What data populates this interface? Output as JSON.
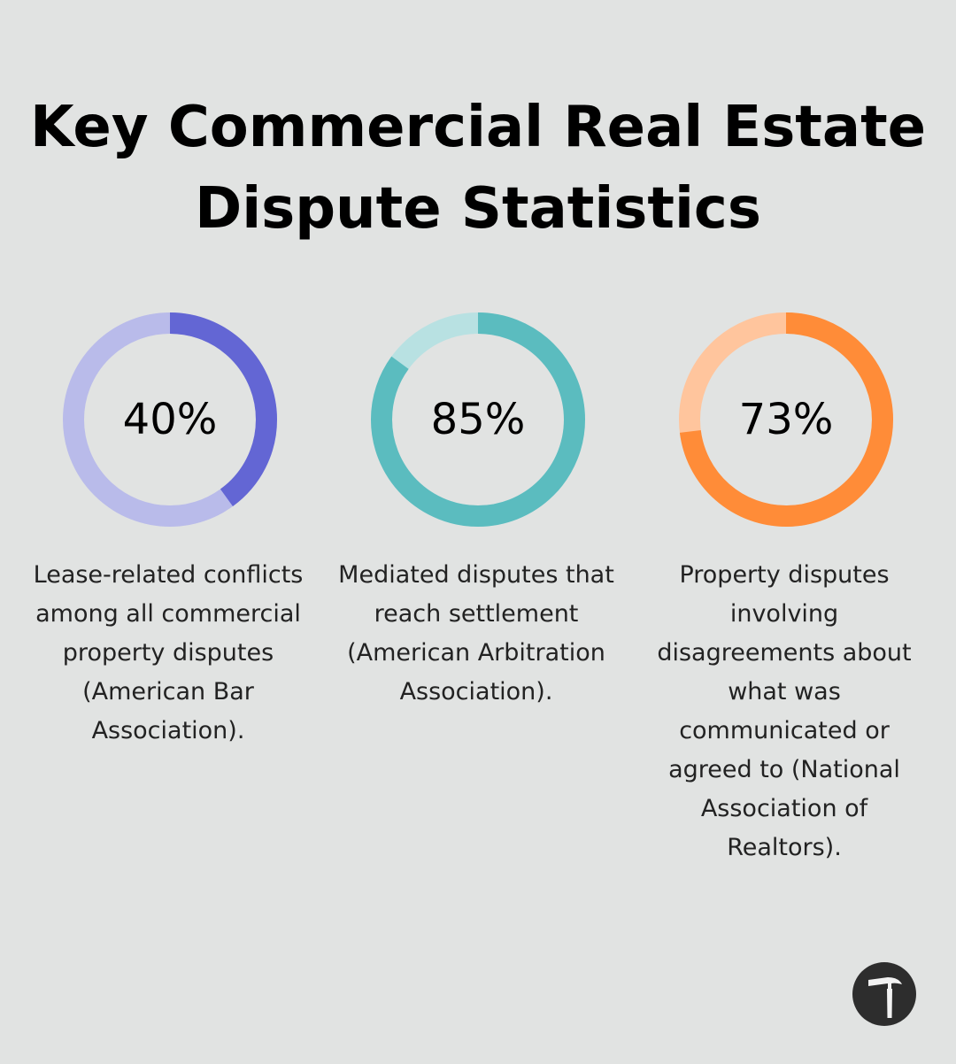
{
  "title": "Key Commercial Real Estate Dispute Statistics",
  "chart_data": {
    "type": "pie",
    "charts": [
      {
        "value": 40,
        "label": "40%",
        "description": "Lease-related conflicts among all commercial property disputes (American Bar Association).",
        "color": "#6366d4",
        "track_color": "#b9bbea"
      },
      {
        "value": 85,
        "label": "85%",
        "description": "Mediated disputes that reach settlement (American Arbitration Association).",
        "color": "#5bbcbf",
        "track_color": "#b8e1e2"
      },
      {
        "value": 73,
        "label": "73%",
        "description": "Property disputes involving disagreements about what was communicated or agreed to (National Association of Realtors).",
        "color": "#ff8c38",
        "track_color": "#ffc59d"
      }
    ]
  },
  "logo": {
    "icon": "hammer-icon",
    "background_color": "#2d2d2d"
  }
}
